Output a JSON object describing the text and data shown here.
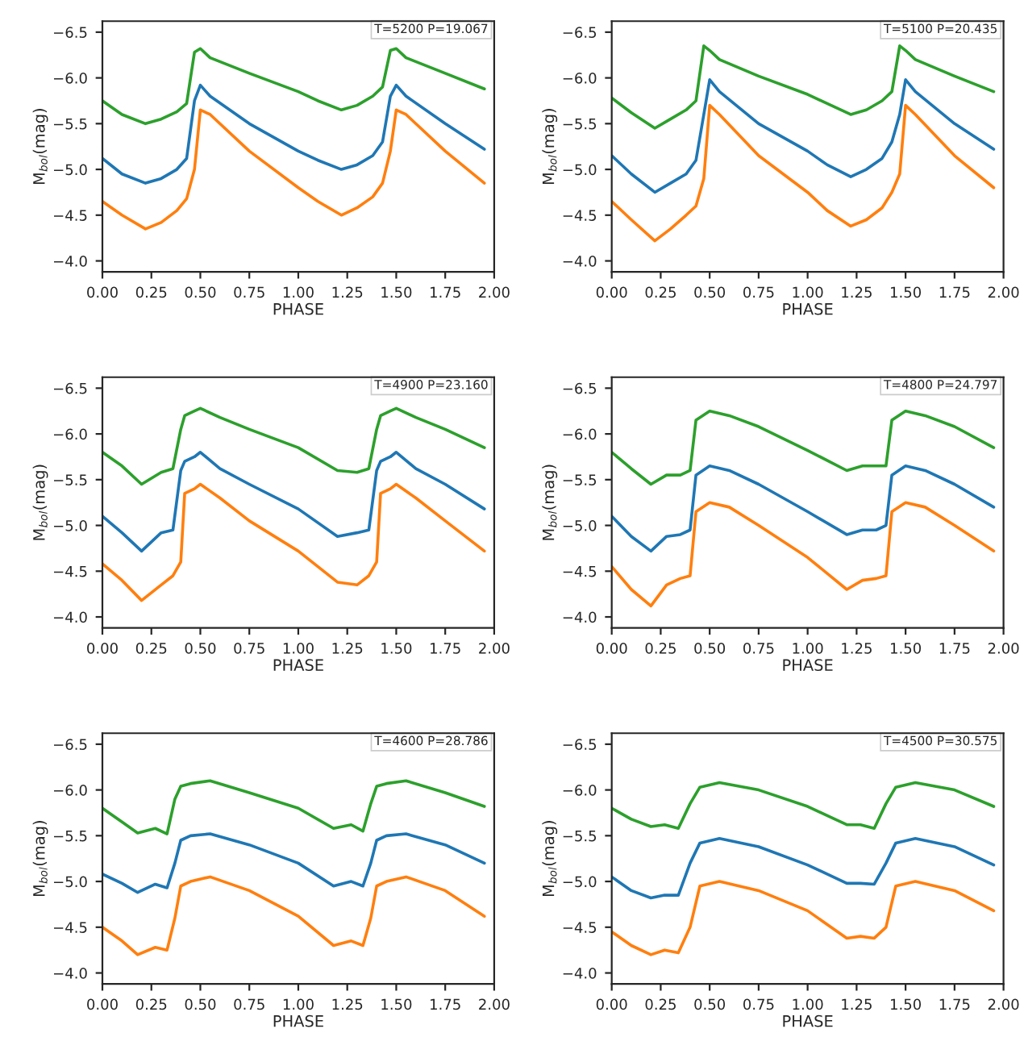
{
  "chart_data": [
    {
      "type": "line",
      "annotations": [
        "T=5200 P=19.067"
      ],
      "xlabel": "PHASE",
      "ylabel": "M$_{bol}$(mag)",
      "xlim": [
        0,
        2
      ],
      "ylim": [
        -3.88,
        -6.62
      ],
      "xticks": [
        {
          "value": 0,
          "label": "0.00"
        },
        {
          "value": 0.25,
          "label": "0.25"
        },
        {
          "value": 0.5,
          "label": "0.50"
        },
        {
          "value": 0.75,
          "label": "0.75"
        },
        {
          "value": 1,
          "label": "1.00"
        },
        {
          "value": 1.25,
          "label": "1.25"
        },
        {
          "value": 1.5,
          "label": "1.50"
        },
        {
          "value": 1.75,
          "label": "1.75"
        },
        {
          "value": 2,
          "label": "2.00"
        }
      ],
      "yticks": [
        {
          "value": -6.5,
          "label": "−6.5"
        },
        {
          "value": -6,
          "label": "−6.0"
        },
        {
          "value": -5.5,
          "label": "−5.5"
        },
        {
          "value": -5,
          "label": "−5.0"
        },
        {
          "value": -4.5,
          "label": "−4.5"
        },
        {
          "value": -4,
          "label": "−4.0"
        }
      ],
      "x": [
        0,
        0.1,
        0.22,
        0.3,
        0.38,
        0.43,
        0.47,
        0.5,
        0.55,
        0.75,
        1.0,
        1.1,
        1.22,
        1.3,
        1.38,
        1.43,
        1.47,
        1.5,
        1.55,
        1.75,
        1.95
      ],
      "series": [
        {
          "color": "#2ca02c",
          "values": [
            -5.75,
            -5.6,
            -5.5,
            -5.55,
            -5.63,
            -5.72,
            -6.28,
            -6.32,
            -6.22,
            -6.05,
            -5.85,
            -5.75,
            -5.65,
            -5.7,
            -5.8,
            -5.9,
            -6.3,
            -6.32,
            -6.22,
            -6.05,
            -5.88
          ]
        },
        {
          "color": "#1f77b4",
          "values": [
            -5.12,
            -4.95,
            -4.85,
            -4.9,
            -5.0,
            -5.12,
            -5.75,
            -5.92,
            -5.8,
            -5.5,
            -5.2,
            -5.1,
            -5.0,
            -5.05,
            -5.15,
            -5.3,
            -5.8,
            -5.92,
            -5.8,
            -5.5,
            -5.22
          ]
        },
        {
          "color": "#ff7f0e",
          "values": [
            -4.65,
            -4.5,
            -4.35,
            -4.42,
            -4.55,
            -4.68,
            -5.0,
            -5.65,
            -5.6,
            -5.2,
            -4.8,
            -4.65,
            -4.5,
            -4.58,
            -4.7,
            -4.85,
            -5.2,
            -5.65,
            -5.6,
            -5.2,
            -4.85
          ]
        }
      ]
    },
    {
      "type": "line",
      "annotations": [
        "T=5100 P=20.435"
      ],
      "xlabel": "PHASE",
      "ylabel": "M$_{bol}$(mag)",
      "xlim": [
        0,
        2
      ],
      "ylim": [
        -3.88,
        -6.62
      ],
      "xticks": [
        {
          "value": 0,
          "label": "0.00"
        },
        {
          "value": 0.25,
          "label": "0.25"
        },
        {
          "value": 0.5,
          "label": "0.50"
        },
        {
          "value": 0.75,
          "label": "0.75"
        },
        {
          "value": 1,
          "label": "1.00"
        },
        {
          "value": 1.25,
          "label": "1.25"
        },
        {
          "value": 1.5,
          "label": "1.50"
        },
        {
          "value": 1.75,
          "label": "1.75"
        },
        {
          "value": 2,
          "label": "2.00"
        }
      ],
      "yticks": [
        {
          "value": -6.5,
          "label": "−6.5"
        },
        {
          "value": -6,
          "label": "−6.0"
        },
        {
          "value": -5.5,
          "label": "−5.5"
        },
        {
          "value": -5,
          "label": "−5.0"
        },
        {
          "value": -4.5,
          "label": "−4.5"
        },
        {
          "value": -4,
          "label": "−4.0"
        }
      ],
      "x": [
        0,
        0.1,
        0.22,
        0.3,
        0.38,
        0.43,
        0.47,
        0.5,
        0.55,
        0.75,
        1.0,
        1.1,
        1.22,
        1.3,
        1.38,
        1.43,
        1.47,
        1.5,
        1.55,
        1.75,
        1.95
      ],
      "series": [
        {
          "color": "#2ca02c",
          "values": [
            -5.78,
            -5.62,
            -5.45,
            -5.55,
            -5.65,
            -5.75,
            -6.35,
            -6.3,
            -6.2,
            -6.02,
            -5.82,
            -5.72,
            -5.6,
            -5.65,
            -5.75,
            -5.85,
            -6.35,
            -6.3,
            -6.2,
            -6.02,
            -5.85
          ]
        },
        {
          "color": "#1f77b4",
          "values": [
            -5.15,
            -4.95,
            -4.75,
            -4.85,
            -4.95,
            -5.1,
            -5.6,
            -5.98,
            -5.85,
            -5.5,
            -5.2,
            -5.05,
            -4.92,
            -5.0,
            -5.12,
            -5.3,
            -5.6,
            -5.98,
            -5.85,
            -5.5,
            -5.22
          ]
        },
        {
          "color": "#ff7f0e",
          "values": [
            -4.65,
            -4.45,
            -4.22,
            -4.35,
            -4.5,
            -4.6,
            -4.9,
            -5.7,
            -5.6,
            -5.15,
            -4.75,
            -4.55,
            -4.38,
            -4.45,
            -4.58,
            -4.75,
            -4.95,
            -5.7,
            -5.6,
            -5.15,
            -4.8
          ]
        }
      ]
    },
    {
      "type": "line",
      "annotations": [
        "T=4900 P=23.160"
      ],
      "xlabel": "PHASE",
      "ylabel": "M$_{bol}$(mag)",
      "xlim": [
        0,
        2
      ],
      "ylim": [
        -3.88,
        -6.62
      ],
      "xticks": [
        {
          "value": 0,
          "label": "0.00"
        },
        {
          "value": 0.25,
          "label": "0.25"
        },
        {
          "value": 0.5,
          "label": "0.50"
        },
        {
          "value": 0.75,
          "label": "0.75"
        },
        {
          "value": 1,
          "label": "1.00"
        },
        {
          "value": 1.25,
          "label": "1.25"
        },
        {
          "value": 1.5,
          "label": "1.50"
        },
        {
          "value": 1.75,
          "label": "1.75"
        },
        {
          "value": 2,
          "label": "2.00"
        }
      ],
      "yticks": [
        {
          "value": -6.5,
          "label": "−6.5"
        },
        {
          "value": -6,
          "label": "−6.0"
        },
        {
          "value": -5.5,
          "label": "−5.5"
        },
        {
          "value": -5,
          "label": "−5.0"
        },
        {
          "value": -4.5,
          "label": "−4.5"
        },
        {
          "value": -4,
          "label": "−4.0"
        }
      ],
      "x": [
        0,
        0.1,
        0.2,
        0.3,
        0.36,
        0.4,
        0.42,
        0.47,
        0.5,
        0.6,
        0.75,
        1.0,
        1.2,
        1.3,
        1.36,
        1.4,
        1.42,
        1.47,
        1.5,
        1.6,
        1.75,
        1.95
      ],
      "series": [
        {
          "color": "#2ca02c",
          "values": [
            -5.8,
            -5.65,
            -5.45,
            -5.58,
            -5.62,
            -6.05,
            -6.2,
            -6.25,
            -6.28,
            -6.18,
            -6.05,
            -5.85,
            -5.6,
            -5.58,
            -5.62,
            -6.05,
            -6.2,
            -6.25,
            -6.28,
            -6.18,
            -6.05,
            -5.85
          ]
        },
        {
          "color": "#1f77b4",
          "values": [
            -5.1,
            -4.92,
            -4.72,
            -4.92,
            -4.95,
            -5.6,
            -5.7,
            -5.75,
            -5.8,
            -5.62,
            -5.45,
            -5.18,
            -4.88,
            -4.92,
            -4.95,
            -5.6,
            -5.7,
            -5.75,
            -5.8,
            -5.62,
            -5.45,
            -5.18
          ]
        },
        {
          "color": "#ff7f0e",
          "values": [
            -4.58,
            -4.4,
            -4.18,
            -4.35,
            -4.45,
            -4.6,
            -5.35,
            -5.4,
            -5.45,
            -5.3,
            -5.05,
            -4.72,
            -4.38,
            -4.35,
            -4.45,
            -4.6,
            -5.35,
            -5.4,
            -5.45,
            -5.3,
            -5.05,
            -4.72
          ]
        }
      ]
    },
    {
      "type": "line",
      "annotations": [
        "T=4800 P=24.797"
      ],
      "xlabel": "PHASE",
      "ylabel": "M$_{bol}$(mag)",
      "xlim": [
        0,
        2
      ],
      "ylim": [
        -3.88,
        -6.62
      ],
      "xticks": [
        {
          "value": 0,
          "label": "0.00"
        },
        {
          "value": 0.25,
          "label": "0.25"
        },
        {
          "value": 0.5,
          "label": "0.50"
        },
        {
          "value": 0.75,
          "label": "0.75"
        },
        {
          "value": 1,
          "label": "1.00"
        },
        {
          "value": 1.25,
          "label": "1.25"
        },
        {
          "value": 1.5,
          "label": "1.50"
        },
        {
          "value": 1.75,
          "label": "1.75"
        },
        {
          "value": 2,
          "label": "2.00"
        }
      ],
      "yticks": [
        {
          "value": -6.5,
          "label": "−6.5"
        },
        {
          "value": -6,
          "label": "−6.0"
        },
        {
          "value": -5.5,
          "label": "−5.5"
        },
        {
          "value": -5,
          "label": "−5.0"
        },
        {
          "value": -4.5,
          "label": "−4.5"
        },
        {
          "value": -4,
          "label": "−4.0"
        }
      ],
      "x": [
        0,
        0.1,
        0.2,
        0.28,
        0.35,
        0.4,
        0.43,
        0.5,
        0.6,
        0.75,
        1.0,
        1.2,
        1.28,
        1.35,
        1.4,
        1.43,
        1.5,
        1.6,
        1.75,
        1.95
      ],
      "series": [
        {
          "color": "#2ca02c",
          "values": [
            -5.8,
            -5.62,
            -5.45,
            -5.55,
            -5.55,
            -5.6,
            -6.15,
            -6.25,
            -6.2,
            -6.08,
            -5.82,
            -5.6,
            -5.65,
            -5.65,
            -5.65,
            -6.15,
            -6.25,
            -6.2,
            -6.08,
            -5.85
          ]
        },
        {
          "color": "#1f77b4",
          "values": [
            -5.1,
            -4.88,
            -4.72,
            -4.88,
            -4.9,
            -4.95,
            -5.55,
            -5.65,
            -5.6,
            -5.45,
            -5.15,
            -4.9,
            -4.95,
            -4.95,
            -5.0,
            -5.55,
            -5.65,
            -5.6,
            -5.45,
            -5.2
          ]
        },
        {
          "color": "#ff7f0e",
          "values": [
            -4.55,
            -4.3,
            -4.12,
            -4.35,
            -4.42,
            -4.45,
            -5.15,
            -5.25,
            -5.2,
            -5.0,
            -4.65,
            -4.3,
            -4.4,
            -4.42,
            -4.45,
            -5.15,
            -5.25,
            -5.2,
            -5.0,
            -4.72
          ]
        }
      ]
    },
    {
      "type": "line",
      "annotations": [
        "T=4600 P=28.786"
      ],
      "xlabel": "PHASE",
      "ylabel": "M$_{bol}$(mag)",
      "xlim": [
        0,
        2
      ],
      "ylim": [
        -3.88,
        -6.62
      ],
      "xticks": [
        {
          "value": 0,
          "label": "0.00"
        },
        {
          "value": 0.25,
          "label": "0.25"
        },
        {
          "value": 0.5,
          "label": "0.50"
        },
        {
          "value": 0.75,
          "label": "0.75"
        },
        {
          "value": 1,
          "label": "1.00"
        },
        {
          "value": 1.25,
          "label": "1.25"
        },
        {
          "value": 1.5,
          "label": "1.50"
        },
        {
          "value": 1.75,
          "label": "1.75"
        },
        {
          "value": 2,
          "label": "2.00"
        }
      ],
      "yticks": [
        {
          "value": -6.5,
          "label": "−6.5"
        },
        {
          "value": -6,
          "label": "−6.0"
        },
        {
          "value": -5.5,
          "label": "−5.5"
        },
        {
          "value": -5,
          "label": "−5.0"
        },
        {
          "value": -4.5,
          "label": "−4.5"
        },
        {
          "value": -4,
          "label": "−4.0"
        }
      ],
      "x": [
        0,
        0.1,
        0.18,
        0.27,
        0.33,
        0.37,
        0.4,
        0.45,
        0.55,
        0.75,
        1.0,
        1.18,
        1.27,
        1.33,
        1.37,
        1.4,
        1.45,
        1.55,
        1.75,
        1.95
      ],
      "series": [
        {
          "color": "#2ca02c",
          "values": [
            -5.8,
            -5.65,
            -5.53,
            -5.58,
            -5.52,
            -5.9,
            -6.04,
            -6.07,
            -6.1,
            -5.97,
            -5.8,
            -5.58,
            -5.62,
            -5.55,
            -5.85,
            -6.04,
            -6.07,
            -6.1,
            -5.97,
            -5.82
          ]
        },
        {
          "color": "#1f77b4",
          "values": [
            -5.08,
            -4.98,
            -4.88,
            -4.97,
            -4.93,
            -5.2,
            -5.45,
            -5.5,
            -5.52,
            -5.4,
            -5.2,
            -4.95,
            -5.0,
            -4.95,
            -5.2,
            -5.45,
            -5.5,
            -5.52,
            -5.4,
            -5.2
          ]
        },
        {
          "color": "#ff7f0e",
          "values": [
            -4.5,
            -4.35,
            -4.2,
            -4.28,
            -4.25,
            -4.6,
            -4.95,
            -5.0,
            -5.05,
            -4.9,
            -4.62,
            -4.3,
            -4.35,
            -4.3,
            -4.6,
            -4.95,
            -5.0,
            -5.05,
            -4.9,
            -4.62
          ]
        }
      ]
    },
    {
      "type": "line",
      "annotations": [
        "T=4500 P=30.575"
      ],
      "xlabel": "PHASE",
      "ylabel": "M$_{bol}$(mag)",
      "xlim": [
        0,
        2
      ],
      "ylim": [
        -3.88,
        -6.62
      ],
      "xticks": [
        {
          "value": 0,
          "label": "0.00"
        },
        {
          "value": 0.25,
          "label": "0.25"
        },
        {
          "value": 0.5,
          "label": "0.50"
        },
        {
          "value": 0.75,
          "label": "0.75"
        },
        {
          "value": 1,
          "label": "1.00"
        },
        {
          "value": 1.25,
          "label": "1.25"
        },
        {
          "value": 1.5,
          "label": "1.50"
        },
        {
          "value": 1.75,
          "label": "1.75"
        },
        {
          "value": 2,
          "label": "2.00"
        }
      ],
      "yticks": [
        {
          "value": -6.5,
          "label": "−6.5"
        },
        {
          "value": -6,
          "label": "−6.0"
        },
        {
          "value": -5.5,
          "label": "−5.5"
        },
        {
          "value": -5,
          "label": "−5.0"
        },
        {
          "value": -4.5,
          "label": "−4.5"
        },
        {
          "value": -4,
          "label": "−4.0"
        }
      ],
      "x": [
        0,
        0.1,
        0.2,
        0.27,
        0.34,
        0.4,
        0.45,
        0.55,
        0.75,
        1.0,
        1.2,
        1.27,
        1.34,
        1.4,
        1.45,
        1.55,
        1.75,
        1.95
      ],
      "series": [
        {
          "color": "#2ca02c",
          "values": [
            -5.8,
            -5.68,
            -5.6,
            -5.62,
            -5.58,
            -5.85,
            -6.03,
            -6.08,
            -6.0,
            -5.82,
            -5.62,
            -5.62,
            -5.58,
            -5.85,
            -6.03,
            -6.08,
            -6.0,
            -5.82
          ]
        },
        {
          "color": "#1f77b4",
          "values": [
            -5.05,
            -4.9,
            -4.82,
            -4.85,
            -4.85,
            -5.2,
            -5.42,
            -5.47,
            -5.38,
            -5.18,
            -4.98,
            -4.98,
            -4.97,
            -5.2,
            -5.42,
            -5.47,
            -5.38,
            -5.18
          ]
        },
        {
          "color": "#ff7f0e",
          "values": [
            -4.45,
            -4.3,
            -4.2,
            -4.25,
            -4.22,
            -4.5,
            -4.95,
            -5.0,
            -4.9,
            -4.68,
            -4.38,
            -4.4,
            -4.38,
            -4.5,
            -4.95,
            -5.0,
            -4.9,
            -4.68
          ]
        }
      ]
    }
  ]
}
